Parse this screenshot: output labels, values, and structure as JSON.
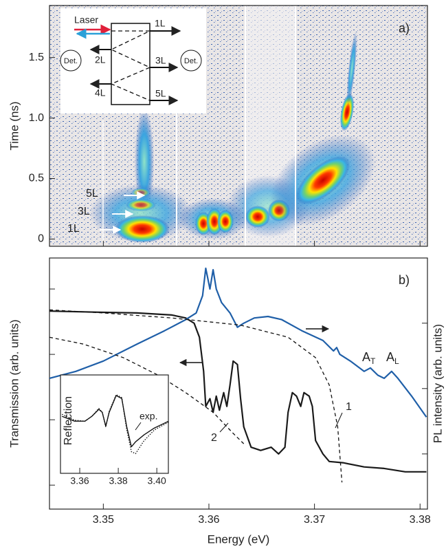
{
  "chart_data": [
    {
      "type": "streak",
      "label": "a)",
      "ylabel": "Time (ns)",
      "xlim": [
        3.3449,
        3.3807
      ],
      "xticks": [
        3.35,
        3.36,
        3.37,
        3.38
      ],
      "ylim": [
        -0.06,
        1.93
      ],
      "yticks": [
        0,
        0.5,
        {
          "value": 1,
          "label": "1.0"
        },
        1.5
      ],
      "annotations": [
        "5L",
        "3L",
        "1L"
      ],
      "schematic": {
        "laser": "Laser",
        "outputs": [
          "1L",
          "2L",
          "3L",
          "4L",
          "5L"
        ],
        "detectors": [
          "Det.",
          "Det."
        ]
      }
    },
    {
      "type": "line",
      "label": "b)",
      "xlabel": "Energy (eV)",
      "ylabel": "Transmission (arb. units)",
      "y2label": "PL intensity (arb. units)",
      "log": true,
      "xlim": [
        3.3449,
        3.3807
      ],
      "xticks": [
        3.35,
        3.36,
        3.37,
        3.38
      ],
      "ylim": [
        0.43,
        2980
      ],
      "yticks": [
        1,
        10,
        100,
        1000
      ],
      "y2lim": [
        0.43,
        2980
      ],
      "y2ticks": [
        3,
        30,
        300
      ],
      "series": [
        {
          "color": "#1a1a1a",
          "dash": "solid",
          "x": [
            3.3449,
            3.35,
            3.3532,
            3.3565,
            3.3578,
            3.3586,
            3.3591,
            3.3595,
            3.3597,
            3.3601,
            3.3604,
            3.3607,
            3.361,
            3.3614,
            3.3617,
            3.362,
            3.3623,
            3.3627,
            3.363,
            3.3633,
            3.364,
            3.3649,
            3.3659,
            3.3666,
            3.3672,
            3.3675,
            3.3679,
            3.3683,
            3.3687,
            3.369,
            3.3695,
            3.3698,
            3.3701,
            3.3708,
            3.3714,
            3.3727,
            3.3747,
            3.3766,
            3.3786,
            3.3806
          ],
          "values": [
            460,
            440,
            430,
            400,
            360,
            300,
            183,
            55,
            16,
            21,
            13,
            23,
            14,
            26,
            16,
            34,
            79,
            70,
            21,
            7.8,
            3.8,
            3.4,
            3.8,
            3.0,
            3.8,
            13,
            26,
            23,
            16,
            26,
            23,
            16,
            4.8,
            3.0,
            2.3,
            2.2,
            1.9,
            1.8,
            1.6,
            1.6
          ]
        },
        {
          "color": "#1f5fa8",
          "dash": "solid",
          "axis": "y2",
          "x": [
            3.3449,
            3.3474,
            3.35,
            3.3532,
            3.3558,
            3.3578,
            3.3588,
            3.3594,
            3.3597,
            3.3601,
            3.3604,
            3.3607,
            3.3612,
            3.362,
            3.3627,
            3.3633,
            3.3643,
            3.3656,
            3.3669,
            3.3688,
            3.3708,
            3.3718,
            3.3721,
            3.3724,
            3.3734,
            3.3747,
            3.3753,
            3.376,
            3.3766,
            3.3773,
            3.3779,
            3.3792,
            3.3806
          ],
          "values": [
            43,
            55,
            79,
            144,
            230,
            340,
            430,
            790,
            2070,
            1000,
            1970,
            1000,
            620,
            430,
            260,
            300,
            360,
            380,
            340,
            230,
            163,
            113,
            127,
            100,
            79,
            55,
            62,
            48,
            43,
            55,
            43,
            23,
            11
          ]
        },
        {
          "color": "#111111",
          "dash": "dashed",
          "x": [
            3.3449,
            3.35,
            3.3565,
            3.363,
            3.3675,
            3.3701,
            3.3714,
            3.3722,
            3.3726
          ],
          "values": [
            480,
            430,
            360,
            280,
            183,
            89,
            34,
            7.8,
            1.1
          ]
        },
        {
          "color": "#111111",
          "dash": "dashed",
          "x": [
            3.3449,
            3.3481,
            3.3519,
            3.3552,
            3.3578,
            3.3604,
            3.3623,
            3.3633
          ],
          "values": [
            183,
            144,
            89,
            48,
            26,
            13,
            6.2,
            4.3
          ]
        }
      ],
      "annotations": [
        "1",
        "2"
      ],
      "peaks": [
        {
          "text": "A",
          "sub": "T"
        },
        {
          "text": "A",
          "sub": "L"
        }
      ]
    },
    {
      "type": "line",
      "ylabel": "Reflection",
      "xlim": [
        3.35,
        3.406
      ],
      "xticks": [
        3.36,
        3.38,
        {
          "value": 3.4,
          "label": "3.40"
        }
      ],
      "ylim": [
        0,
        1
      ],
      "series": [
        {
          "name": "exp.",
          "color": "#111111",
          "dash": "solid",
          "x": [
            3.3508,
            3.3573,
            3.3627,
            3.3663,
            3.3699,
            3.3717,
            3.3735,
            3.3753,
            3.3789,
            3.3818,
            3.3843,
            3.3868,
            3.389,
            3.3933,
            3.3987,
            3.4061
          ],
          "values": [
            0.58,
            0.53,
            0.53,
            0.58,
            0.65,
            0.62,
            0.48,
            0.62,
            0.79,
            0.76,
            0.48,
            0.27,
            0.32,
            0.39,
            0.46,
            0.53
          ]
        },
        {
          "color": "#111111",
          "dash": "dotted",
          "x": [
            3.3508,
            3.3573,
            3.3627,
            3.3663,
            3.3699,
            3.3717,
            3.3735,
            3.3753,
            3.3789,
            3.3818,
            3.3843,
            3.3868,
            3.389,
            3.3933,
            3.3987,
            3.4061
          ],
          "values": [
            0.6,
            0.54,
            0.53,
            0.58,
            0.66,
            0.62,
            0.47,
            0.63,
            0.8,
            0.77,
            0.45,
            0.22,
            0.2,
            0.33,
            0.44,
            0.52
          ]
        }
      ]
    }
  ]
}
